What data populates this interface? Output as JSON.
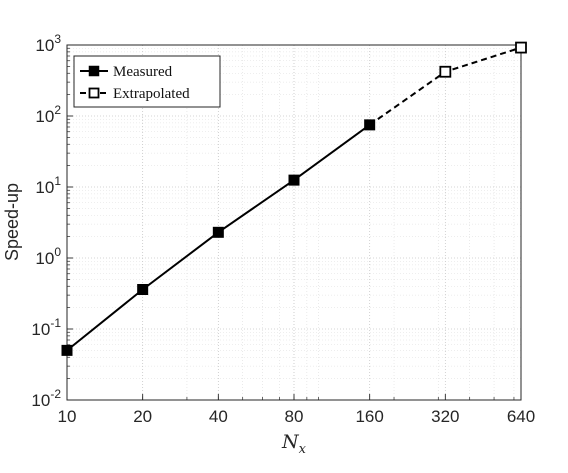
{
  "chart_data": {
    "type": "line",
    "x_scale": "log2",
    "y_scale": "log10",
    "xlim": [
      10,
      640
    ],
    "ylim": [
      0.01,
      1000
    ],
    "x_ticks": [
      "10",
      "20",
      "40",
      "80",
      "160",
      "320",
      "640"
    ],
    "y_ticks": [
      {
        "base": "10",
        "exp": "-2"
      },
      {
        "base": "10",
        "exp": "-1"
      },
      {
        "base": "10",
        "exp": "0"
      },
      {
        "base": "10",
        "exp": "1"
      },
      {
        "base": "10",
        "exp": "2"
      },
      {
        "base": "10",
        "exp": "3"
      }
    ],
    "xlabel": {
      "main": "N",
      "sub": "x"
    },
    "ylabel": "Speed-up",
    "grid": true,
    "legend_position": "top-left",
    "series": [
      {
        "name": "Measured",
        "style": "solid",
        "marker": "filled-square",
        "color": "#000000",
        "x": [
          10,
          20,
          40,
          80,
          160
        ],
        "y": [
          0.05,
          0.36,
          2.3,
          12.5,
          75
        ]
      },
      {
        "name": "Extrapolated",
        "style": "dashed",
        "marker": "open-square",
        "color": "#000000",
        "x": [
          160,
          320,
          640
        ],
        "y": [
          75,
          420,
          920
        ]
      }
    ]
  }
}
